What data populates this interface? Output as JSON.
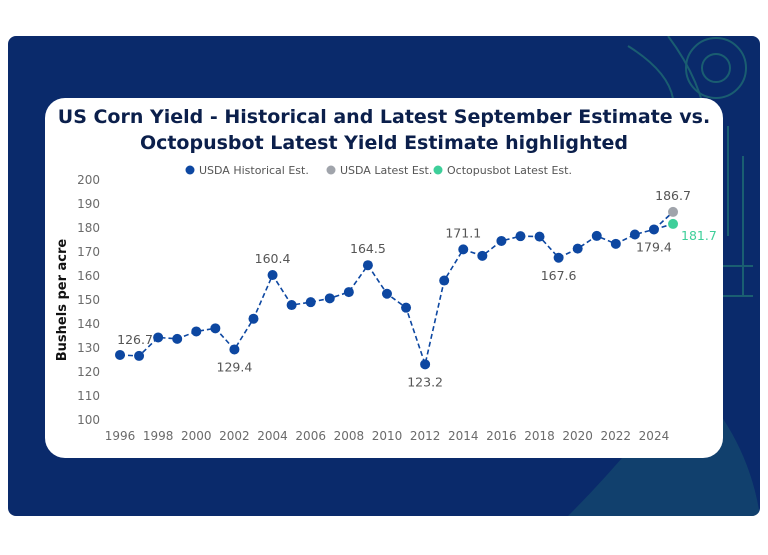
{
  "colors": {
    "frame": "#0a2a6b",
    "card": "#ffffff",
    "historical": "#0d47a1",
    "usda_latest": "#a0a4ab",
    "octopusbot": "#3ecf9a",
    "octopusbot_label": "#3ecf9a",
    "title": "#0b1f4b"
  },
  "chart_data": {
    "type": "line",
    "title_line1": "US Corn Yield - Historical and Latest September Estimate vs.",
    "title_line2": "Octopusbot Latest Yield Estimate highlighted",
    "ylabel": "Bushels per acre",
    "xlabel": "",
    "ylim": [
      100,
      200
    ],
    "y_ticks": [
      "100",
      "110",
      "120",
      "130",
      "140",
      "150",
      "160",
      "170",
      "180",
      "190",
      "200"
    ],
    "x_ticks": [
      "1996",
      "1998",
      "2000",
      "2002",
      "2004",
      "2006",
      "2008",
      "2010",
      "2012",
      "2014",
      "2016",
      "2018",
      "2020",
      "2022",
      "2024"
    ],
    "legend": [
      {
        "name": "USDA Historical Est.",
        "color_key": "historical"
      },
      {
        "name": "USDA Latest Est.",
        "color_key": "usda_latest"
      },
      {
        "name": "Octopusbot Latest Est.",
        "color_key": "octopusbot"
      }
    ],
    "series": [
      {
        "name": "USDA Historical Est.",
        "x": [
          1996,
          1997,
          1998,
          1999,
          2000,
          2001,
          2002,
          2003,
          2004,
          2005,
          2006,
          2007,
          2008,
          2009,
          2010,
          2011,
          2012,
          2013,
          2014,
          2015,
          2016,
          2017,
          2018,
          2019,
          2020,
          2021,
          2022,
          2023,
          2024
        ],
        "values": [
          127.1,
          126.7,
          134.4,
          133.8,
          136.9,
          138.2,
          129.4,
          142.2,
          160.4,
          147.9,
          149.1,
          150.7,
          153.3,
          164.5,
          152.6,
          146.8,
          123.2,
          158.1,
          171.1,
          168.4,
          174.6,
          176.6,
          176.4,
          167.6,
          171.4,
          176.7,
          173.4,
          177.3,
          179.4
        ]
      },
      {
        "name": "USDA Latest Est.",
        "x": [
          2025
        ],
        "values": [
          186.7
        ]
      },
      {
        "name": "Octopusbot Latest Est.",
        "x": [
          2025
        ],
        "values": [
          181.7
        ]
      }
    ],
    "data_labels": [
      {
        "year": 1997,
        "text": "126.7",
        "pos": "above"
      },
      {
        "year": 2002,
        "text": "129.4",
        "pos": "below"
      },
      {
        "year": 2004,
        "text": "160.4",
        "pos": "above"
      },
      {
        "year": 2009,
        "text": "164.5",
        "pos": "above"
      },
      {
        "year": 2012,
        "text": "123.2",
        "pos": "below"
      },
      {
        "year": 2014,
        "text": "171.1",
        "pos": "above"
      },
      {
        "year": 2019,
        "text": "167.6",
        "pos": "below"
      },
      {
        "year": 2024,
        "text": "179.4",
        "pos": "below"
      },
      {
        "year": 2025,
        "text": "186.7",
        "pos": "above",
        "series": "usda_latest"
      },
      {
        "year": 2025,
        "text": "181.7",
        "pos": "right",
        "series": "octopusbot"
      }
    ]
  }
}
